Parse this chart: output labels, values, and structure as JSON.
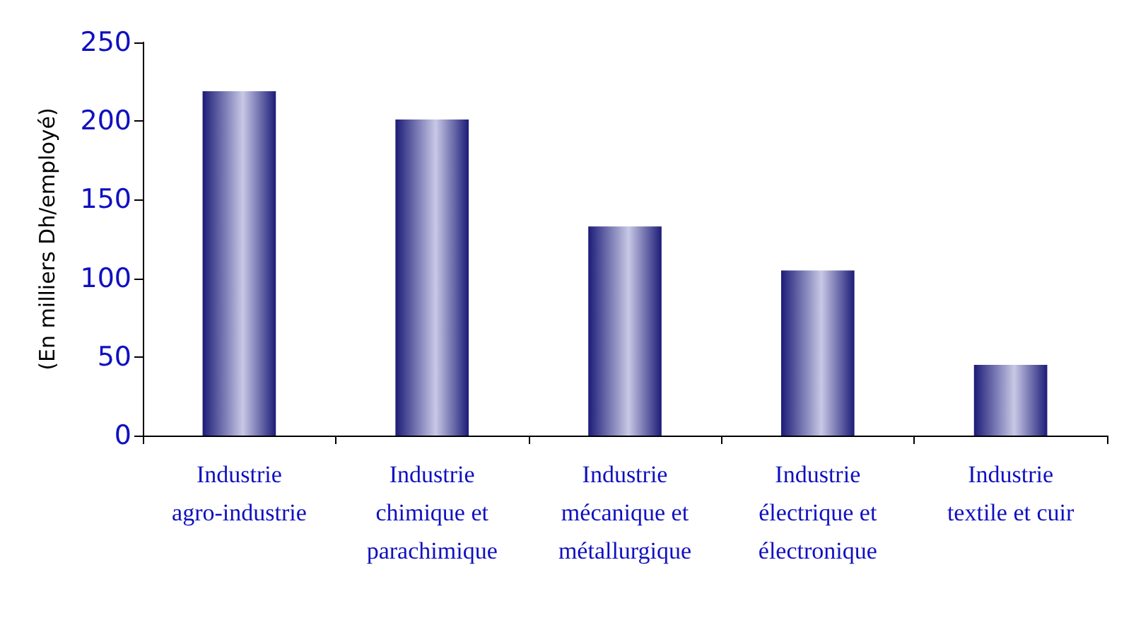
{
  "chart_data": {
    "type": "bar",
    "ylabel": "(En milliers Dh/employé)",
    "categories": [
      "Industrie\nagro-industrie",
      "Industrie\nchimique et\nparachimique",
      "Industrie\nmécanique et\nmétallurgique",
      "Industrie\nélectrique et\nélectronique",
      "Industrie\ntextile et cuir"
    ],
    "values": [
      219,
      201,
      133,
      105,
      45
    ],
    "color": "#1c1c78",
    "ylim": [
      0,
      250
    ],
    "yticks": [
      0,
      50,
      100,
      150,
      200,
      250
    ],
    "grid": false
  }
}
